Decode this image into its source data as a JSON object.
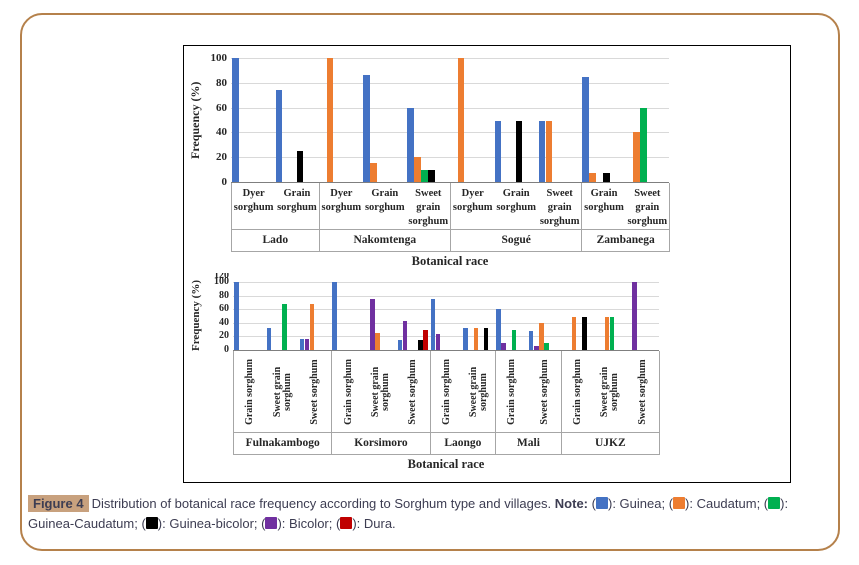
{
  "figure": {
    "frame_color": "#B5814B",
    "box_border_color": "#000000"
  },
  "caption": {
    "figure_label": "Figure 4",
    "text": "Distribution of botanical race frequency according to Sorghum type and villages.",
    "note_label": "Note:",
    "legend": [
      {
        "name": "Guinea",
        "color": "#4472C4"
      },
      {
        "name": "Caudatum",
        "color": "#ED7D31"
      },
      {
        "name": "Guinea-Caudatum",
        "color": "#00B050"
      },
      {
        "name": "Guinea-bicolor",
        "color": "#000000"
      },
      {
        "name": "Bicolor",
        "color": "#7030A0"
      },
      {
        "name": "Dura",
        "color": "#C00000"
      }
    ],
    "highlight_color": "#C8A17E",
    "text_color": "#3D3D52"
  },
  "chart_data": [
    {
      "type": "bar",
      "title": "",
      "ylabel": "Frequency (%)",
      "xlabel": "Botanical race",
      "ylim": [
        0,
        100
      ],
      "yticks": [
        0,
        20,
        40,
        60,
        80,
        100
      ],
      "grid": true,
      "legend_position": "none",
      "series_colors": {
        "Guinea": "#4472C4",
        "Caudatum": "#ED7D31",
        "Guinea-Caudatum": "#00B050",
        "Guinea-bicolor": "#000000",
        "Bicolor": "#7030A0",
        "Dura": "#C00000"
      },
      "series_order": [
        "Guinea",
        "Caudatum",
        "Guinea-Caudatum",
        "Guinea-bicolor",
        "Bicolor",
        "Dura"
      ],
      "groups": [
        {
          "village": "Lado",
          "categories": [
            {
              "label": "Dyer sorghum",
              "bars": [
                {
                  "series": "Guinea",
                  "value": 100
                }
              ]
            },
            {
              "label": "Grain sorghum",
              "bars": [
                {
                  "series": "Guinea",
                  "value": 74
                },
                {
                  "series": "Guinea-bicolor",
                  "value": 25
                }
              ]
            }
          ]
        },
        {
          "village": "Nakomtenga",
          "categories": [
            {
              "label": "Dyer sorghum",
              "bars": [
                {
                  "series": "Caudatum",
                  "value": 100
                }
              ]
            },
            {
              "label": "Grain sorghum",
              "bars": [
                {
                  "series": "Guinea",
                  "value": 86
                },
                {
                  "series": "Caudatum",
                  "value": 15
                }
              ]
            },
            {
              "label": "Sweet grain sorghum",
              "bars": [
                {
                  "series": "Guinea",
                  "value": 60
                },
                {
                  "series": "Caudatum",
                  "value": 20
                },
                {
                  "series": "Guinea-Caudatum",
                  "value": 10
                },
                {
                  "series": "Guinea-bicolor",
                  "value": 10
                }
              ]
            }
          ]
        },
        {
          "village": "Sogué",
          "categories": [
            {
              "label": "Dyer sorghum",
              "bars": [
                {
                  "series": "Caudatum",
                  "value": 100
                }
              ]
            },
            {
              "label": "Grain sorghum",
              "bars": [
                {
                  "series": "Guinea",
                  "value": 49
                },
                {
                  "series": "Guinea-bicolor",
                  "value": 49
                }
              ]
            },
            {
              "label": "Sweet grain sorghum",
              "bars": [
                {
                  "series": "Guinea",
                  "value": 49
                },
                {
                  "series": "Caudatum",
                  "value": 49
                }
              ]
            }
          ]
        },
        {
          "village": "Zambanega",
          "categories": [
            {
              "label": "Grain sorghum",
              "bars": [
                {
                  "series": "Guinea",
                  "value": 85
                },
                {
                  "series": "Caudatum",
                  "value": 7
                },
                {
                  "series": "Guinea-bicolor",
                  "value": 7
                }
              ]
            },
            {
              "label": "Sweet grain sorghum",
              "bars": [
                {
                  "series": "Caudatum",
                  "value": 40
                },
                {
                  "series": "Guinea-Caudatum",
                  "value": 60
                }
              ]
            }
          ]
        }
      ]
    },
    {
      "type": "bar",
      "title": "",
      "ylabel": "Frequency (%)",
      "xlabel": "Botanical race",
      "ylim": [
        0,
        100
      ],
      "yticks": [
        0,
        20,
        40,
        60,
        80,
        100
      ],
      "clipped_top_tick": "120",
      "grid": true,
      "legend_position": "none",
      "series_colors": {
        "Guinea": "#4472C4",
        "Caudatum": "#ED7D31",
        "Guinea-Caudatum": "#00B050",
        "Guinea-bicolor": "#000000",
        "Bicolor": "#7030A0",
        "Dura": "#C00000"
      },
      "series_order": [
        "Guinea",
        "Bicolor",
        "Caudatum",
        "Guinea-Caudatum",
        "Guinea-bicolor",
        "Dura"
      ],
      "groups": [
        {
          "village": "Fulnakambogo",
          "categories": [
            {
              "label": "Grain sorghum",
              "bars": [
                {
                  "series": "Guinea",
                  "value": 100
                }
              ]
            },
            {
              "label": "Sweet grain sorghum",
              "bars": [
                {
                  "series": "Guinea",
                  "value": 33
                },
                {
                  "series": "Guinea-Caudatum",
                  "value": 67
                }
              ]
            },
            {
              "label": "Sweet sorghum",
              "bars": [
                {
                  "series": "Guinea",
                  "value": 16
                },
                {
                  "series": "Bicolor",
                  "value": 16
                },
                {
                  "series": "Caudatum",
                  "value": 67
                }
              ]
            }
          ]
        },
        {
          "village": "Korsimoro",
          "categories": [
            {
              "label": "Grain sorghum",
              "bars": [
                {
                  "series": "Guinea",
                  "value": 100
                }
              ]
            },
            {
              "label": "Sweet grain sorghum",
              "bars": [
                {
                  "series": "Bicolor",
                  "value": 75
                },
                {
                  "series": "Caudatum",
                  "value": 25
                }
              ]
            },
            {
              "label": "Sweet sorghum",
              "bars": [
                {
                  "series": "Guinea",
                  "value": 14
                },
                {
                  "series": "Bicolor",
                  "value": 43
                },
                {
                  "series": "Guinea-bicolor",
                  "value": 14
                },
                {
                  "series": "Dura",
                  "value": 29
                }
              ]
            }
          ]
        },
        {
          "village": "Laongo",
          "categories": [
            {
              "label": "Grain sorghum",
              "bars": [
                {
                  "series": "Guinea",
                  "value": 75
                },
                {
                  "series": "Bicolor",
                  "value": 24
                }
              ]
            },
            {
              "label": "Sweet grain sorghum",
              "bars": [
                {
                  "series": "Guinea",
                  "value": 33
                },
                {
                  "series": "Caudatum",
                  "value": 33
                },
                {
                  "series": "Guinea-bicolor",
                  "value": 33
                }
              ]
            }
          ]
        },
        {
          "village": "Mali",
          "categories": [
            {
              "label": "Grain sorghum",
              "bars": [
                {
                  "series": "Guinea",
                  "value": 60
                },
                {
                  "series": "Bicolor",
                  "value": 10
                },
                {
                  "series": "Guinea-Caudatum",
                  "value": 30
                }
              ]
            },
            {
              "label": "Sweet sorghum",
              "bars": [
                {
                  "series": "Guinea",
                  "value": 28
                },
                {
                  "series": "Bicolor",
                  "value": 6
                },
                {
                  "series": "Caudatum",
                  "value": 39
                },
                {
                  "series": "Guinea-Caudatum",
                  "value": 11
                }
              ]
            }
          ]
        },
        {
          "village": "UJKZ",
          "categories": [
            {
              "label": "Grain sorghum",
              "bars": [
                {
                  "series": "Caudatum",
                  "value": 48
                },
                {
                  "series": "Guinea-bicolor",
                  "value": 48
                }
              ]
            },
            {
              "label": "Sweet grain sorghum",
              "bars": [
                {
                  "series": "Caudatum",
                  "value": 48
                },
                {
                  "series": "Guinea-Caudatum",
                  "value": 48
                }
              ]
            },
            {
              "label": "Sweet sorghum",
              "bars": [
                {
                  "series": "Bicolor",
                  "value": 100
                }
              ]
            }
          ]
        }
      ]
    }
  ]
}
